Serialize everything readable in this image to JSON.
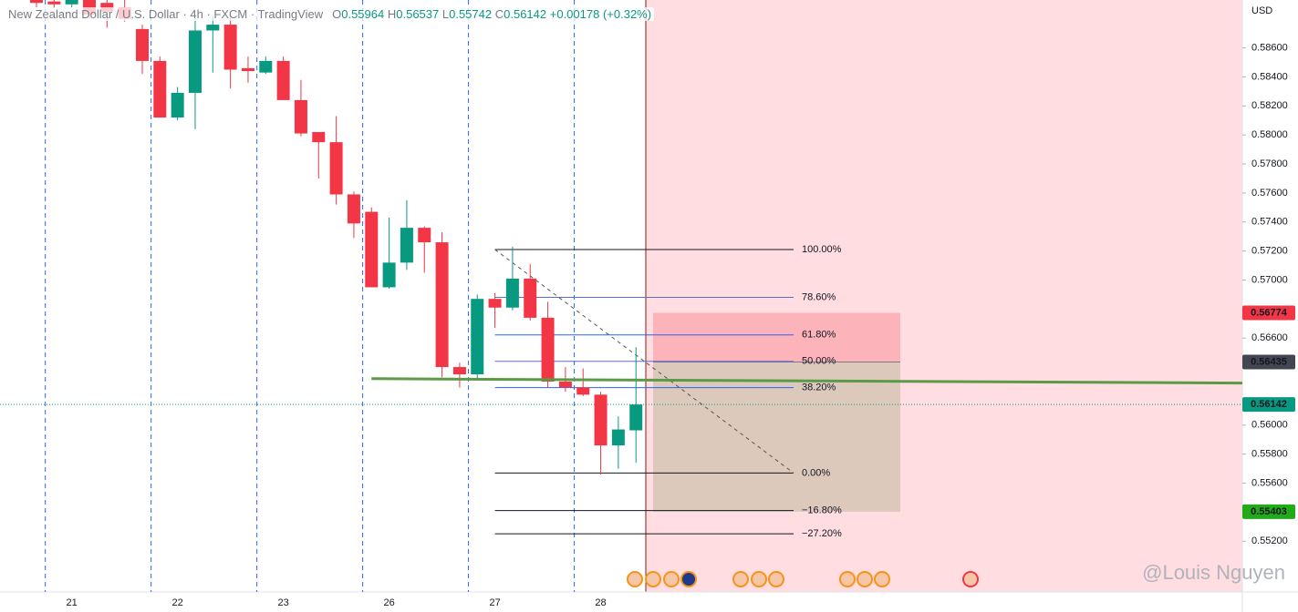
{
  "header": {
    "symbol": "New Zealand Dollar / U.S. Dollar · 4h · FXCM · TradingView",
    "ohlc_letters": [
      "O",
      "H",
      "L",
      "C"
    ],
    "change": "+0.00178 (+0.32%)"
  },
  "chart_data": {
    "type": "candlestick",
    "categories": [
      null,
      null,
      "21",
      null,
      null,
      null,
      null,
      null,
      "22",
      null,
      null,
      null,
      null,
      null,
      "23",
      null,
      null,
      null,
      null,
      null,
      "26",
      null,
      null,
      null,
      null,
      null,
      "27",
      null,
      null,
      null,
      null,
      null,
      "28",
      null,
      null
    ],
    "series": [
      {
        "up_color": "#089981",
        "down_color": "#f23645",
        "values": [
          [
            0.5893,
            0.5894,
            0.5888,
            0.5891
          ],
          [
            0.5892,
            0.5895,
            0.5887,
            0.589
          ],
          [
            0.589,
            0.5895,
            0.5888,
            0.5893
          ],
          [
            0.5893,
            0.5895,
            0.588,
            0.5883
          ],
          [
            0.5891,
            0.5894,
            0.5874,
            0.5885
          ],
          [
            0.5888,
            0.5893,
            0.5878,
            0.588
          ],
          [
            0.5873,
            0.5876,
            0.5842,
            0.5851
          ],
          [
            0.5851,
            0.5854,
            0.5812,
            0.5812
          ],
          [
            0.5812,
            0.5833,
            0.581,
            0.5829
          ],
          [
            0.5829,
            0.5881,
            0.5804,
            0.5872
          ],
          [
            0.5872,
            0.5882,
            0.5843,
            0.5876
          ],
          [
            0.5876,
            0.5881,
            0.5832,
            0.5845
          ],
          [
            0.5846,
            0.5854,
            0.5836,
            0.5844
          ],
          [
            0.5843,
            0.5854,
            0.5842,
            0.5851
          ],
          [
            0.5851,
            0.5854,
            0.5824,
            0.5824
          ],
          [
            0.5824,
            0.5838,
            0.5799,
            0.5801
          ],
          [
            0.5802,
            0.5802,
            0.577,
            0.5795
          ],
          [
            0.5795,
            0.5813,
            0.5752,
            0.5759
          ],
          [
            0.5759,
            0.5761,
            0.5729,
            0.5739
          ],
          [
            0.5747,
            0.575,
            0.5695,
            0.5695
          ],
          [
            0.5695,
            0.5743,
            0.5694,
            0.5712
          ],
          [
            0.5712,
            0.5755,
            0.5707,
            0.5736
          ],
          [
            0.5736,
            0.5737,
            0.5705,
            0.5726
          ],
          [
            0.5726,
            0.5733,
            0.5633,
            0.564
          ],
          [
            0.564,
            0.5643,
            0.5626,
            0.5635
          ],
          [
            0.5635,
            0.569,
            0.5632,
            0.5687
          ],
          [
            0.5687,
            0.5691,
            0.5667,
            0.5681
          ],
          [
            0.5681,
            0.5723,
            0.5679,
            0.5701
          ],
          [
            0.5701,
            0.5711,
            0.5672,
            0.5674
          ],
          [
            0.5674,
            0.5685,
            0.5626,
            0.563
          ],
          [
            0.563,
            0.564,
            0.5623,
            0.5626
          ],
          [
            0.5626,
            0.5639,
            0.562,
            0.5621
          ],
          [
            0.5621,
            0.5623,
            0.5566,
            0.5586
          ],
          [
            0.5586,
            0.5606,
            0.557,
            0.5597
          ],
          [
            0.55964,
            0.56537,
            0.55742,
            0.56142
          ]
        ]
      }
    ],
    "ylim": [
      0.5485,
      0.5893
    ],
    "yticks": [
      {
        "value": 0.586,
        "label": "0.58600"
      },
      {
        "value": 0.584,
        "label": "0.58400"
      },
      {
        "value": 0.582,
        "label": "0.58200"
      },
      {
        "value": 0.58,
        "label": "0.58000"
      },
      {
        "value": 0.578,
        "label": "0.57800"
      },
      {
        "value": 0.576,
        "label": "0.57600"
      },
      {
        "value": 0.574,
        "label": "0.57400"
      },
      {
        "value": 0.572,
        "label": "0.57200"
      },
      {
        "value": 0.57,
        "label": "0.57000"
      },
      {
        "value": 0.566,
        "label": "0.56600"
      },
      {
        "value": 0.56,
        "label": "0.56000"
      },
      {
        "value": 0.558,
        "label": "0.55800"
      },
      {
        "value": 0.556,
        "label": "0.55600"
      },
      {
        "value": 0.552,
        "label": "0.55200"
      }
    ],
    "currency": "USD",
    "trend_line": {
      "values": [
        0.5632,
        0.5629
      ],
      "color": "#5b9a46"
    },
    "fib": {
      "high": 0.5721,
      "low": 0.5567,
      "levels": [
        {
          "value": 100,
          "label": "100.00%"
        },
        {
          "value": 78.6,
          "label": "78.60%"
        },
        {
          "value": 61.8,
          "label": "61.80%"
        },
        {
          "value": 50,
          "label": "50.00%"
        },
        {
          "value": 38.2,
          "label": "38.20%"
        },
        {
          "value": 0,
          "label": "0.00%"
        },
        {
          "value": -16.8,
          "label": "−16.80%"
        },
        {
          "value": -27.2,
          "label": "−27.20%"
        }
      ]
    },
    "position": {
      "stop": 0.56774,
      "entry": 0.56435,
      "target": 0.55403
    }
  },
  "watermark": "@Louis Nguyen"
}
